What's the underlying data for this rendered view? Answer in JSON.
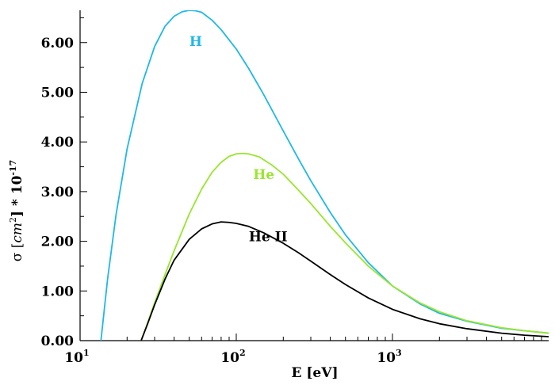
{
  "chart_data": {
    "type": "line",
    "xscale": "log",
    "xlim": [
      10,
      10000
    ],
    "ylim": [
      0,
      6.65
    ],
    "xlabel": "E [eV]",
    "ylabel": {
      "prefix": "σ [",
      "unit_base": "cm",
      "unit_exp": "2",
      "suffix": "] * 10",
      "power": "-17"
    },
    "x_tick_labels": [
      {
        "value": 10,
        "base": "10",
        "exp": "1"
      },
      {
        "value": 100,
        "base": "10",
        "exp": "2"
      },
      {
        "value": 1000,
        "base": "10",
        "exp": "3"
      }
    ],
    "y_ticks": [
      0,
      1,
      2,
      3,
      4,
      5,
      6
    ],
    "y_tick_labels": [
      "0.00",
      "1.00",
      "2.00",
      "3.00",
      "4.00",
      "5.00",
      "6.00"
    ],
    "grid": false,
    "series": [
      {
        "name": "H",
        "color": "#1fb8e6",
        "label_at": [
          55,
          5.93
        ],
        "points": [
          [
            13.6,
            0.0
          ],
          [
            15,
            1.24
          ],
          [
            17,
            2.54
          ],
          [
            20,
            3.86
          ],
          [
            25,
            5.18
          ],
          [
            30,
            5.92
          ],
          [
            35,
            6.33
          ],
          [
            40,
            6.53
          ],
          [
            45,
            6.62
          ],
          [
            50,
            6.65
          ],
          [
            55,
            6.64
          ],
          [
            60,
            6.61
          ],
          [
            70,
            6.45
          ],
          [
            80,
            6.26
          ],
          [
            100,
            5.87
          ],
          [
            120,
            5.48
          ],
          [
            150,
            4.95
          ],
          [
            200,
            4.22
          ],
          [
            250,
            3.66
          ],
          [
            300,
            3.22
          ],
          [
            400,
            2.58
          ],
          [
            500,
            2.13
          ],
          [
            700,
            1.57
          ],
          [
            1000,
            1.1
          ],
          [
            1500,
            0.74
          ],
          [
            2000,
            0.55
          ],
          [
            3000,
            0.39
          ],
          [
            5000,
            0.25
          ],
          [
            7000,
            0.2
          ],
          [
            10000,
            0.15
          ]
        ]
      },
      {
        "name": "He",
        "color": "#99e62e",
        "label_at": [
          150,
          3.25
        ],
        "points": [
          [
            24.6,
            0.0
          ],
          [
            27,
            0.35
          ],
          [
            30,
            0.76
          ],
          [
            35,
            1.33
          ],
          [
            40,
            1.81
          ],
          [
            50,
            2.55
          ],
          [
            60,
            3.05
          ],
          [
            70,
            3.39
          ],
          [
            80,
            3.59
          ],
          [
            90,
            3.71
          ],
          [
            100,
            3.76
          ],
          [
            110,
            3.77
          ],
          [
            120,
            3.76
          ],
          [
            140,
            3.7
          ],
          [
            170,
            3.53
          ],
          [
            200,
            3.35
          ],
          [
            250,
            3.03
          ],
          [
            300,
            2.76
          ],
          [
            400,
            2.3
          ],
          [
            500,
            1.97
          ],
          [
            700,
            1.5
          ],
          [
            1000,
            1.1
          ],
          [
            1500,
            0.76
          ],
          [
            2000,
            0.58
          ],
          [
            3000,
            0.4
          ],
          [
            5000,
            0.26
          ],
          [
            7000,
            0.2
          ],
          [
            10000,
            0.15
          ]
        ]
      },
      {
        "name": "He II",
        "color": "#000000",
        "label_at": [
          160,
          2.0
        ],
        "points": [
          [
            24.6,
            0.0
          ],
          [
            27,
            0.33
          ],
          [
            30,
            0.72
          ],
          [
            35,
            1.24
          ],
          [
            40,
            1.62
          ],
          [
            50,
            2.04
          ],
          [
            60,
            2.25
          ],
          [
            70,
            2.35
          ],
          [
            80,
            2.39
          ],
          [
            90,
            2.38
          ],
          [
            100,
            2.36
          ],
          [
            120,
            2.3
          ],
          [
            150,
            2.17
          ],
          [
            200,
            1.96
          ],
          [
            250,
            1.77
          ],
          [
            300,
            1.6
          ],
          [
            400,
            1.33
          ],
          [
            500,
            1.13
          ],
          [
            700,
            0.86
          ],
          [
            1000,
            0.63
          ],
          [
            1500,
            0.44
          ],
          [
            2000,
            0.34
          ],
          [
            3000,
            0.24
          ],
          [
            5000,
            0.15
          ],
          [
            7000,
            0.11
          ],
          [
            10000,
            0.08
          ]
        ]
      }
    ]
  }
}
